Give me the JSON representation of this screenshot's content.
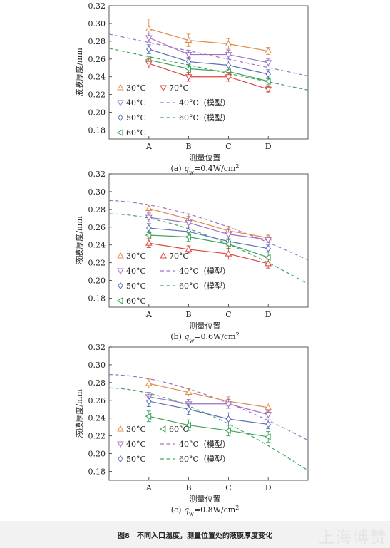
{
  "caption": "图8　不同入口温度，测量位置处的液膜厚度变化",
  "watermark": "上海博赞",
  "chart_data": [
    {
      "type": "line",
      "subtitle_prefix": "(a) ",
      "subtitle_var": "q",
      "subtitle_sub": "w",
      "subtitle_rest": "=0.4W/cm",
      "subtitle_sup": "2",
      "xlabel": "测量位置",
      "ylabel": "液膜厚度/mm",
      "categories": [
        "A",
        "B",
        "C",
        "D"
      ],
      "ylim": [
        0.17,
        0.32
      ],
      "yticks": [
        "0.18",
        "0.20",
        "0.22",
        "0.24",
        "0.26",
        "0.28",
        "0.30",
        "0.32"
      ],
      "series": [
        {
          "name": "30°C",
          "marker": "triangle-up",
          "color": "#e08a4a",
          "values": [
            0.294,
            0.281,
            0.277,
            0.269
          ],
          "err": [
            0.011,
            0.007,
            0.006,
            0.004
          ]
        },
        {
          "name": "40°C",
          "marker": "triangle-down",
          "color": "#a070c8",
          "values": [
            0.284,
            0.265,
            0.265,
            0.256
          ],
          "err": [
            0.005,
            0.005,
            0.005,
            0.004
          ]
        },
        {
          "name": "50°C",
          "marker": "diamond",
          "color": "#5a6fb8",
          "values": [
            0.271,
            0.257,
            0.253,
            0.243
          ],
          "err": [
            0.005,
            0.005,
            0.005,
            0.005
          ]
        },
        {
          "name": "60°C",
          "marker": "triangle-left",
          "color": "#3da55a",
          "values": [
            0.259,
            0.249,
            0.246,
            0.235
          ],
          "err": [
            0.004,
            0.005,
            0.004,
            0.004
          ]
        },
        {
          "name": "70°C",
          "marker": "triangle-down",
          "color": "#d9453c",
          "values": [
            0.255,
            0.24,
            0.24,
            0.226
          ],
          "err": [
            0.005,
            0.005,
            0.005,
            0.003
          ]
        }
      ],
      "models": [
        {
          "name": "40°C（模型）",
          "color": "#a070c8",
          "x": [
            0,
            5.0
          ],
          "y": [
            0.288,
            0.241
          ]
        },
        {
          "name": "60°C（模型）",
          "color": "#3da55a",
          "x": [
            0,
            5.0
          ],
          "y": [
            0.272,
            0.225
          ]
        }
      ],
      "legend_items": [
        {
          "kind": "marker",
          "series": 0,
          "label": "30°C"
        },
        {
          "kind": "marker",
          "series": 4,
          "label": "70°C"
        },
        {
          "kind": "marker",
          "series": 1,
          "label": "40°C"
        },
        {
          "kind": "line",
          "model": 0,
          "label": "40°C（模型）"
        },
        {
          "kind": "marker",
          "series": 2,
          "label": "50°C"
        },
        {
          "kind": "line",
          "model": 1,
          "label": "60°C（模型）"
        },
        {
          "kind": "marker",
          "series": 3,
          "label": "60°C"
        }
      ]
    },
    {
      "type": "line",
      "subtitle_prefix": "(b) ",
      "subtitle_var": "q",
      "subtitle_sub": "w",
      "subtitle_rest": "=0.6W/cm",
      "subtitle_sup": "2",
      "xlabel": "测量位置",
      "ylabel": "液膜厚度/mm",
      "categories": [
        "A",
        "B",
        "C",
        "D"
      ],
      "ylim": [
        0.17,
        0.32
      ],
      "yticks": [
        "0.18",
        "0.20",
        "0.22",
        "0.24",
        "0.26",
        "0.28",
        "0.30",
        "0.32"
      ],
      "series": [
        {
          "name": "30°C",
          "marker": "triangle-up",
          "color": "#e08a4a",
          "values": [
            0.281,
            0.269,
            0.256,
            0.248
          ],
          "err": [
            0.004,
            0.006,
            0.005,
            0.003
          ]
        },
        {
          "name": "40°C",
          "marker": "triangle-down",
          "color": "#a070c8",
          "values": [
            0.271,
            0.265,
            0.252,
            0.246
          ],
          "err": [
            0.005,
            0.007,
            0.005,
            0.003
          ]
        },
        {
          "name": "50°C",
          "marker": "diamond",
          "color": "#5a6fb8",
          "values": [
            0.259,
            0.255,
            0.244,
            0.236
          ],
          "err": [
            0.005,
            0.005,
            0.005,
            0.004
          ]
        },
        {
          "name": "60°C",
          "marker": "triangle-left",
          "color": "#3da55a",
          "values": [
            0.251,
            0.249,
            0.241,
            0.226
          ],
          "err": [
            0.004,
            0.005,
            0.005,
            0.006
          ]
        },
        {
          "name": "70°C",
          "marker": "triangle-up",
          "color": "#d9453c",
          "values": [
            0.242,
            0.235,
            0.23,
            0.219
          ],
          "err": [
            0.005,
            0.004,
            0.006,
            0.005
          ]
        }
      ],
      "models": [
        {
          "name": "40°C（模型）",
          "color": "#a070c8",
          "x": [
            0,
            2.2,
            5.0
          ],
          "y": [
            0.29,
            0.272,
            0.223
          ]
        },
        {
          "name": "60°C（模型）",
          "color": "#3da55a",
          "x": [
            0,
            2.2,
            5.0
          ],
          "y": [
            0.275,
            0.255,
            0.196
          ]
        }
      ],
      "legend_items": [
        {
          "kind": "marker",
          "series": 0,
          "label": "30°C"
        },
        {
          "kind": "marker",
          "series": 4,
          "label": "70°C"
        },
        {
          "kind": "marker",
          "series": 1,
          "label": "40°C"
        },
        {
          "kind": "line",
          "model": 0,
          "label": "40°C（模型）"
        },
        {
          "kind": "marker",
          "series": 2,
          "label": "50°C"
        },
        {
          "kind": "line",
          "model": 1,
          "label": "60°C（模型）"
        },
        {
          "kind": "marker",
          "series": 3,
          "label": "60°C"
        }
      ]
    },
    {
      "type": "line",
      "subtitle_prefix": "(c) ",
      "subtitle_var": "q",
      "subtitle_sub": "w",
      "subtitle_rest": "=0.8W/cm",
      "subtitle_sup": "2",
      "xlabel": "测量位置",
      "ylabel": "液膜厚度/mm",
      "categories": [
        "A",
        "B",
        "C",
        "D"
      ],
      "ylim": [
        0.17,
        0.32
      ],
      "yticks": [
        "0.18",
        "0.20",
        "0.22",
        "0.24",
        "0.26",
        "0.28",
        "0.30",
        "0.32"
      ],
      "series": [
        {
          "name": "30°C",
          "marker": "triangle-up",
          "color": "#e08a4a",
          "values": [
            0.279,
            0.269,
            0.259,
            0.252
          ],
          "err": [
            0.005,
            0.004,
            0.005,
            0.005
          ]
        },
        {
          "name": "40°C",
          "marker": "triangle-down",
          "color": "#a070c8",
          "values": [
            0.264,
            0.256,
            0.256,
            0.244
          ],
          "err": [
            0.005,
            0.005,
            0.005,
            0.004
          ]
        },
        {
          "name": "50°C",
          "marker": "diamond",
          "color": "#5a6fb8",
          "values": [
            0.259,
            0.25,
            0.239,
            0.233
          ],
          "err": [
            0.006,
            0.006,
            0.007,
            0.005
          ]
        },
        {
          "name": "60°C",
          "marker": "triangle-left",
          "color": "#3da55a",
          "values": [
            0.242,
            0.232,
            0.226,
            0.219
          ],
          "err": [
            0.006,
            0.006,
            0.006,
            0.006
          ]
        }
      ],
      "models": [
        {
          "name": "40°C（模型）",
          "color": "#a070c8",
          "x": [
            0,
            2.2,
            5.0
          ],
          "y": [
            0.289,
            0.27,
            0.215
          ]
        },
        {
          "name": "60°C（模型）",
          "color": "#3da55a",
          "x": [
            0,
            2.2,
            5.0
          ],
          "y": [
            0.274,
            0.25,
            0.181
          ]
        }
      ],
      "legend_items": [
        {
          "kind": "marker",
          "series": 0,
          "label": "30°C"
        },
        {
          "kind": "marker",
          "series": 3,
          "label": "60°C"
        },
        {
          "kind": "marker",
          "series": 1,
          "label": "40°C"
        },
        {
          "kind": "line",
          "model": 0,
          "label": "40°C（模型）"
        },
        {
          "kind": "marker",
          "series": 2,
          "label": "50°C"
        },
        {
          "kind": "line",
          "model": 1,
          "label": "60°C（模型）"
        }
      ]
    }
  ]
}
